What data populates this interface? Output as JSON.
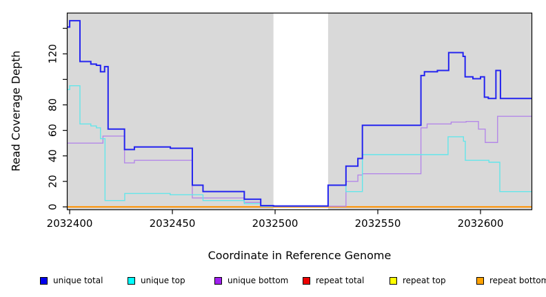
{
  "chart_data": {
    "type": "line",
    "step": true,
    "title": "",
    "xlabel": "Coordinate in Reference Genome",
    "ylabel": "Read Coverage Depth",
    "xlim": [
      2032398.8,
      2032625.0
    ],
    "ylim": [
      -2.2,
      152.0
    ],
    "x_end": 2032625.0,
    "grid": false,
    "plot_background": "#ffffff",
    "shaded_regions": [
      {
        "from": 2032398.8,
        "to": 2032499.2,
        "color": "#d9d9d9"
      },
      {
        "from": 2032525.8,
        "to": 2032625.0,
        "color": "#d9d9d9"
      }
    ],
    "x_ticks": [
      {
        "value": 2032400,
        "label": "2032400"
      },
      {
        "value": 2032450,
        "label": "2032450"
      },
      {
        "value": 2032500,
        "label": "2032500"
      },
      {
        "value": 2032550,
        "label": "2032550"
      },
      {
        "value": 2032600,
        "label": "2032600"
      }
    ],
    "y_ticks": [
      {
        "value": 0,
        "label": "0"
      },
      {
        "value": 20,
        "label": "20"
      },
      {
        "value": 40,
        "label": "40"
      },
      {
        "value": 60,
        "label": "60"
      },
      {
        "value": 80,
        "label": "80"
      },
      {
        "value": 100,
        "label": ""
      },
      {
        "value": 120,
        "label": "120"
      },
      {
        "value": 140,
        "label": ""
      }
    ],
    "series": [
      {
        "name": "repeat total",
        "line_color": "#dd0000",
        "width": 1.4,
        "points": [
          [
            2032398.8,
            0
          ]
        ]
      },
      {
        "name": "repeat top",
        "line_color": "#ffff00",
        "width": 1.4,
        "points": [
          [
            2032398.8,
            0
          ]
        ]
      },
      {
        "name": "repeat bottom",
        "line_color": "#ff9100",
        "width": 2,
        "points": [
          [
            2032398.8,
            0
          ]
        ]
      },
      {
        "name": "unique bottom",
        "line_color": "#b487e8",
        "width": 1.4,
        "points": [
          [
            2032398.8,
            50
          ],
          [
            2032416.2,
            55.5
          ],
          [
            2032426.7,
            34.5
          ],
          [
            2032431.5,
            36.5
          ],
          [
            2032459.7,
            7
          ],
          [
            2032484.9,
            3.6
          ],
          [
            2032493,
            0.5
          ],
          [
            2032534.5,
            20
          ],
          [
            2032540.3,
            25
          ],
          [
            2032542.5,
            26
          ],
          [
            2032571,
            62
          ],
          [
            2032574,
            65
          ],
          [
            2032585.7,
            66.5
          ],
          [
            2032593,
            67
          ],
          [
            2032599,
            61
          ],
          [
            2032602.3,
            50.5
          ],
          [
            2032608.3,
            71
          ]
        ]
      },
      {
        "name": "unique top",
        "line_color": "#63e6ea",
        "width": 1.4,
        "points": [
          [
            2032398.8,
            92
          ],
          [
            2032400,
            95
          ],
          [
            2032405,
            65
          ],
          [
            2032410.3,
            63.5
          ],
          [
            2032413,
            62
          ],
          [
            2032415,
            53.5
          ],
          [
            2032417.2,
            5
          ],
          [
            2032426.8,
            10.5
          ],
          [
            2032448.9,
            9.5
          ],
          [
            2032464.9,
            5
          ],
          [
            2032485,
            2.5
          ],
          [
            2032493,
            0.5
          ],
          [
            2032525.8,
            17
          ],
          [
            2032534.5,
            12
          ],
          [
            2032542.5,
            41
          ],
          [
            2032584.2,
            55
          ],
          [
            2032591.7,
            51.5
          ],
          [
            2032592.6,
            36.5
          ],
          [
            2032604.1,
            35
          ],
          [
            2032609.4,
            12
          ]
        ]
      },
      {
        "name": "unique total",
        "line_color": "#2323ef",
        "width": 2,
        "points": [
          [
            2032398.8,
            141
          ],
          [
            2032400,
            146
          ],
          [
            2032405,
            114
          ],
          [
            2032410.3,
            112
          ],
          [
            2032413,
            111
          ],
          [
            2032415,
            106
          ],
          [
            2032417,
            110
          ],
          [
            2032418.7,
            61
          ],
          [
            2032426.7,
            45
          ],
          [
            2032431.5,
            47
          ],
          [
            2032449,
            46
          ],
          [
            2032459.7,
            17
          ],
          [
            2032464.9,
            12
          ],
          [
            2032485,
            6
          ],
          [
            2032493,
            1
          ],
          [
            2032499.2,
            0.7
          ],
          [
            2032525.8,
            17
          ],
          [
            2032534.5,
            32
          ],
          [
            2032540.3,
            38
          ],
          [
            2032542.5,
            64
          ],
          [
            2032571,
            103
          ],
          [
            2032572.7,
            106
          ],
          [
            2032579,
            107
          ],
          [
            2032584.5,
            121
          ],
          [
            2032591.5,
            118
          ],
          [
            2032592.5,
            102
          ],
          [
            2032596.3,
            100.5
          ],
          [
            2032600,
            102
          ],
          [
            2032601.9,
            86
          ],
          [
            2032603.8,
            85
          ],
          [
            2032607.5,
            107
          ],
          [
            2032609.7,
            85
          ]
        ]
      }
    ],
    "legend": [
      {
        "label": "unique total",
        "color": "#0000ee"
      },
      {
        "label": "unique top",
        "color": "#00ffff"
      },
      {
        "label": "unique bottom",
        "color": "#a020f0"
      },
      {
        "label": "repeat total",
        "color": "#ee0000"
      },
      {
        "label": "repeat top",
        "color": "#ffff00"
      },
      {
        "label": "repeat bottom",
        "color": "#ffa200"
      }
    ],
    "legend_position": "bottom"
  }
}
